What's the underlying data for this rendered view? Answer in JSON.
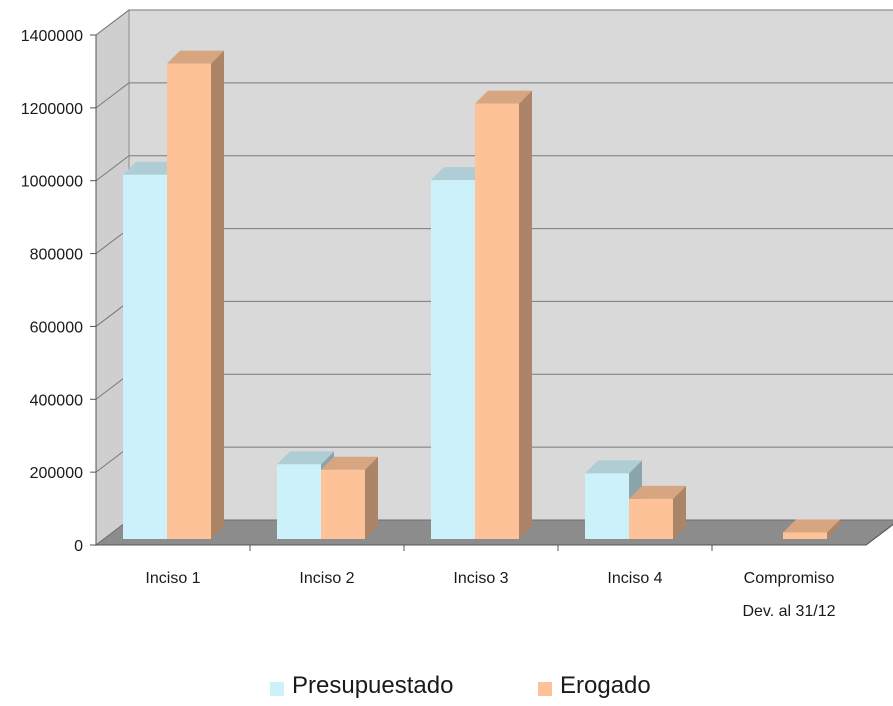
{
  "chart_data": {
    "type": "bar",
    "categories": [
      "Inciso 1",
      "Inciso 2",
      "Inciso 3",
      "Inciso 4",
      "Compromiso Dev. al 31/12"
    ],
    "category_label_lines": [
      [
        "Inciso 1"
      ],
      [
        "Inciso 2"
      ],
      [
        "Inciso 3"
      ],
      [
        "Inciso 4"
      ],
      [
        "Compromiso",
        "Dev. al 31/12"
      ]
    ],
    "series": [
      {
        "name": "Presupuestado",
        "color": "#cdf1fb",
        "values": [
          1000000,
          205000,
          985000,
          180000,
          0
        ]
      },
      {
        "name": "Erogado",
        "color": "#fdc297",
        "values": [
          1305000,
          190000,
          1195000,
          110000,
          18000
        ]
      }
    ],
    "ylim": [
      0,
      1400000
    ],
    "yticks": [
      "0",
      "200000",
      "400000",
      "600000",
      "800000",
      "1000000",
      "1200000",
      "1400000"
    ],
    "grid": true,
    "legend_position": "bottom",
    "title": "",
    "xlabel": "",
    "ylabel": ""
  }
}
